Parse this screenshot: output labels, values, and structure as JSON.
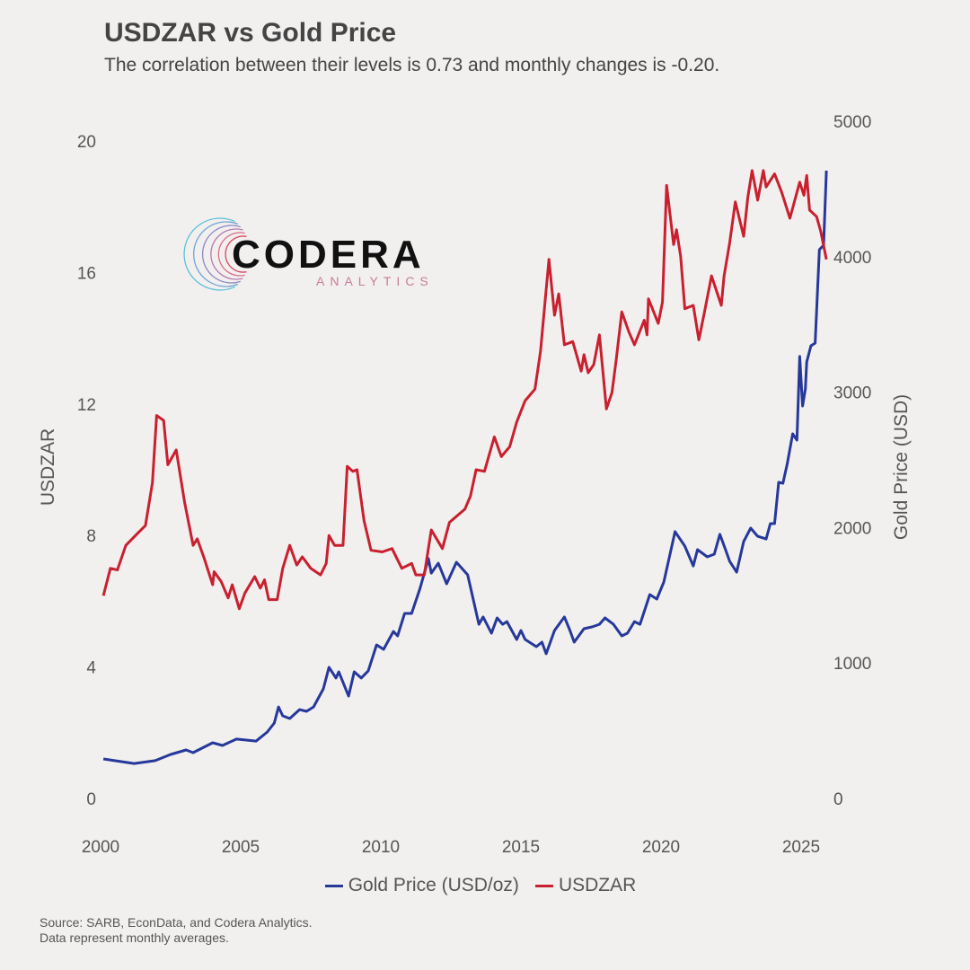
{
  "chart_data": {
    "type": "line",
    "title": "USDZAR vs Gold Price",
    "subtitle": "The correlation between their levels is 0.73 and monthly changes is -0.20.",
    "xlabel": "",
    "ylabel_left": "USDZAR",
    "ylabel_right": "Gold Price (USD)",
    "xlim": [
      2000,
      2026
    ],
    "ylim_left": [
      0,
      20
    ],
    "ylim_right": [
      0,
      5000
    ],
    "x_ticks": [
      "2000",
      "2005",
      "2010",
      "2015",
      "2020",
      "2025"
    ],
    "y_ticks_left": [
      "0",
      "4",
      "8",
      "12",
      "16",
      "20"
    ],
    "y_ticks_right": [
      "0",
      "1000",
      "2000",
      "3000",
      "4000",
      "5000"
    ],
    "grid": false,
    "legend_position": "bottom",
    "colors": {
      "gold": "#26389a",
      "usdzar": "#c8202f",
      "background": "#f2f0ef"
    },
    "series": [
      {
        "name": "Gold Price (USD/oz)",
        "axis": "right",
        "points": [
          [
            2000.1,
            292
          ],
          [
            2000.5,
            279
          ],
          [
            2001.2,
            258
          ],
          [
            2001.95,
            279
          ],
          [
            2002.5,
            325
          ],
          [
            2003.05,
            358
          ],
          [
            2003.3,
            338
          ],
          [
            2004.0,
            411
          ],
          [
            2004.35,
            391
          ],
          [
            2004.85,
            438
          ],
          [
            2005.55,
            424
          ],
          [
            2005.95,
            491
          ],
          [
            2006.2,
            557
          ],
          [
            2006.35,
            676
          ],
          [
            2006.5,
            610
          ],
          [
            2006.75,
            590
          ],
          [
            2007.1,
            656
          ],
          [
            2007.35,
            643
          ],
          [
            2007.6,
            676
          ],
          [
            2007.95,
            809
          ],
          [
            2008.15,
            968
          ],
          [
            2008.4,
            889
          ],
          [
            2008.5,
            935
          ],
          [
            2008.85,
            756
          ],
          [
            2009.05,
            935
          ],
          [
            2009.3,
            889
          ],
          [
            2009.55,
            942
          ],
          [
            2009.85,
            1134
          ],
          [
            2010.1,
            1101
          ],
          [
            2010.45,
            1233
          ],
          [
            2010.6,
            1200
          ],
          [
            2010.85,
            1366
          ],
          [
            2011.1,
            1366
          ],
          [
            2011.4,
            1552
          ],
          [
            2011.7,
            1771
          ],
          [
            2011.8,
            1664
          ],
          [
            2012.05,
            1737
          ],
          [
            2012.35,
            1585
          ],
          [
            2012.7,
            1744
          ],
          [
            2013.1,
            1651
          ],
          [
            2013.5,
            1286
          ],
          [
            2013.65,
            1340
          ],
          [
            2013.95,
            1220
          ],
          [
            2014.15,
            1333
          ],
          [
            2014.35,
            1286
          ],
          [
            2014.5,
            1306
          ],
          [
            2014.85,
            1174
          ],
          [
            2015.0,
            1240
          ],
          [
            2015.15,
            1174
          ],
          [
            2015.55,
            1121
          ],
          [
            2015.75,
            1154
          ],
          [
            2015.9,
            1068
          ],
          [
            2016.2,
            1240
          ],
          [
            2016.55,
            1340
          ],
          [
            2016.75,
            1240
          ],
          [
            2016.9,
            1154
          ],
          [
            2017.25,
            1253
          ],
          [
            2017.55,
            1267
          ],
          [
            2017.8,
            1286
          ],
          [
            2018.0,
            1333
          ],
          [
            2018.3,
            1286
          ],
          [
            2018.6,
            1200
          ],
          [
            2018.8,
            1220
          ],
          [
            2019.05,
            1306
          ],
          [
            2019.25,
            1286
          ],
          [
            2019.6,
            1505
          ],
          [
            2019.85,
            1472
          ],
          [
            2020.1,
            1598
          ],
          [
            2020.5,
            1970
          ],
          [
            2020.85,
            1863
          ],
          [
            2021.15,
            1717
          ],
          [
            2021.3,
            1837
          ],
          [
            2021.65,
            1784
          ],
          [
            2021.9,
            1804
          ],
          [
            2022.1,
            1950
          ],
          [
            2022.3,
            1837
          ],
          [
            2022.45,
            1751
          ],
          [
            2022.7,
            1671
          ],
          [
            2022.95,
            1897
          ],
          [
            2023.2,
            1996
          ],
          [
            2023.45,
            1936
          ],
          [
            2023.75,
            1916
          ],
          [
            2023.9,
            2029
          ],
          [
            2024.05,
            2029
          ],
          [
            2024.2,
            2334
          ],
          [
            2024.35,
            2327
          ],
          [
            2024.5,
            2467
          ],
          [
            2024.7,
            2692
          ],
          [
            2024.85,
            2646
          ],
          [
            2024.95,
            3263
          ],
          [
            2025.05,
            2898
          ],
          [
            2025.15,
            3024
          ],
          [
            2025.2,
            3223
          ],
          [
            2025.35,
            3342
          ],
          [
            2025.5,
            3362
          ],
          [
            2025.65,
            4052
          ],
          [
            2025.8,
            4085
          ],
          [
            2025.9,
            4635
          ]
        ]
      },
      {
        "name": "USDZAR",
        "axis": "left",
        "points": [
          [
            2000.1,
            6.17
          ],
          [
            2000.35,
            7.0
          ],
          [
            2000.6,
            6.95
          ],
          [
            2000.9,
            7.7
          ],
          [
            2001.3,
            8.05
          ],
          [
            2001.6,
            8.3
          ],
          [
            2001.85,
            9.6
          ],
          [
            2002.0,
            11.65
          ],
          [
            2002.25,
            11.5
          ],
          [
            2002.4,
            10.15
          ],
          [
            2002.7,
            10.6
          ],
          [
            2003.0,
            9.0
          ],
          [
            2003.3,
            7.7
          ],
          [
            2003.45,
            7.9
          ],
          [
            2003.7,
            7.3
          ],
          [
            2004.0,
            6.5
          ],
          [
            2004.05,
            6.9
          ],
          [
            2004.3,
            6.6
          ],
          [
            2004.55,
            6.1
          ],
          [
            2004.7,
            6.5
          ],
          [
            2004.95,
            5.77
          ],
          [
            2005.15,
            6.25
          ],
          [
            2005.5,
            6.75
          ],
          [
            2005.7,
            6.4
          ],
          [
            2005.85,
            6.65
          ],
          [
            2006.0,
            6.05
          ],
          [
            2006.3,
            6.05
          ],
          [
            2006.5,
            7.0
          ],
          [
            2006.75,
            7.7
          ],
          [
            2007.0,
            7.1
          ],
          [
            2007.2,
            7.35
          ],
          [
            2007.5,
            7.0
          ],
          [
            2007.85,
            6.8
          ],
          [
            2008.05,
            7.15
          ],
          [
            2008.15,
            8.0
          ],
          [
            2008.35,
            7.7
          ],
          [
            2008.65,
            7.7
          ],
          [
            2008.8,
            10.1
          ],
          [
            2009.0,
            9.95
          ],
          [
            2009.15,
            10.0
          ],
          [
            2009.4,
            8.45
          ],
          [
            2009.65,
            7.55
          ],
          [
            2010.05,
            7.5
          ],
          [
            2010.4,
            7.6
          ],
          [
            2010.75,
            7.0
          ],
          [
            2011.1,
            7.15
          ],
          [
            2011.25,
            6.8
          ],
          [
            2011.55,
            6.8
          ],
          [
            2011.8,
            8.17
          ],
          [
            2012.2,
            7.6
          ],
          [
            2012.45,
            8.4
          ],
          [
            2013.0,
            8.8
          ],
          [
            2013.2,
            9.2
          ],
          [
            2013.4,
            10.0
          ],
          [
            2013.7,
            9.95
          ],
          [
            2014.05,
            11.0
          ],
          [
            2014.3,
            10.4
          ],
          [
            2014.6,
            10.7
          ],
          [
            2014.85,
            11.45
          ],
          [
            2015.15,
            12.1
          ],
          [
            2015.5,
            12.45
          ],
          [
            2015.7,
            13.6
          ],
          [
            2016.0,
            16.4
          ],
          [
            2016.2,
            14.7
          ],
          [
            2016.35,
            15.35
          ],
          [
            2016.55,
            13.8
          ],
          [
            2016.85,
            13.9
          ],
          [
            2017.15,
            13.0
          ],
          [
            2017.25,
            13.5
          ],
          [
            2017.4,
            12.95
          ],
          [
            2017.6,
            13.2
          ],
          [
            2017.8,
            14.1
          ],
          [
            2018.05,
            11.85
          ],
          [
            2018.25,
            12.35
          ],
          [
            2018.4,
            13.35
          ],
          [
            2018.6,
            14.8
          ],
          [
            2018.85,
            14.2
          ],
          [
            2019.05,
            13.8
          ],
          [
            2019.4,
            14.55
          ],
          [
            2019.5,
            14.1
          ],
          [
            2019.55,
            15.2
          ],
          [
            2019.9,
            14.45
          ],
          [
            2020.05,
            15.1
          ],
          [
            2020.2,
            18.65
          ],
          [
            2020.45,
            16.85
          ],
          [
            2020.55,
            17.3
          ],
          [
            2020.7,
            16.5
          ],
          [
            2020.85,
            14.9
          ],
          [
            2021.15,
            15.0
          ],
          [
            2021.35,
            13.95
          ],
          [
            2021.55,
            14.8
          ],
          [
            2021.8,
            15.9
          ],
          [
            2022.15,
            15.0
          ],
          [
            2022.25,
            15.9
          ],
          [
            2022.45,
            16.9
          ],
          [
            2022.65,
            18.15
          ],
          [
            2022.95,
            17.1
          ],
          [
            2023.1,
            18.3
          ],
          [
            2023.25,
            19.1
          ],
          [
            2023.45,
            18.2
          ],
          [
            2023.65,
            19.1
          ],
          [
            2023.75,
            18.6
          ],
          [
            2024.05,
            19.0
          ],
          [
            2024.3,
            18.45
          ],
          [
            2024.6,
            17.65
          ],
          [
            2024.95,
            18.75
          ],
          [
            2025.1,
            18.35
          ],
          [
            2025.2,
            18.95
          ],
          [
            2025.3,
            17.9
          ],
          [
            2025.55,
            17.7
          ],
          [
            2025.7,
            17.25
          ],
          [
            2025.9,
            16.4
          ]
        ]
      }
    ]
  },
  "logo": {
    "name": "CODERA",
    "tagline": "ANALYTICS"
  },
  "source": {
    "line1": "Source: SARB, EconData, and Codera Analytics.",
    "line2": "Data represent monthly averages."
  }
}
